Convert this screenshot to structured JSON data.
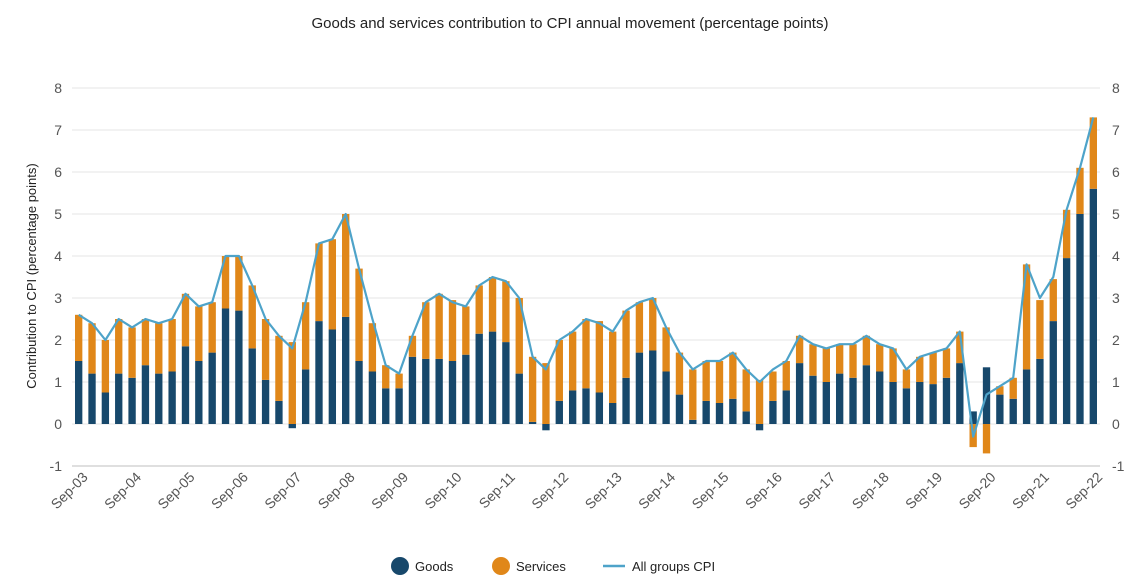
{
  "chart_data": {
    "type": "bar",
    "stacked": true,
    "title": "Goods and services contribution to CPI annual movement (percentage points)",
    "ylabel": "Contribution to CPI (percentage points)",
    "xlabel": "",
    "ylim": [
      -1,
      8
    ],
    "yticks": [
      "-1",
      "0",
      "1",
      "2",
      "3",
      "4",
      "5",
      "6",
      "7",
      "8"
    ],
    "grid": true,
    "legend_position": "bottom",
    "colors": {
      "goods": "#17486b",
      "services": "#e08719",
      "cpi": "#4ea3c9"
    },
    "x_tick_labels": [
      "Sep-03",
      "Sep-04",
      "Sep-05",
      "Sep-06",
      "Sep-07",
      "Sep-08",
      "Sep-09",
      "Sep-10",
      "Sep-11",
      "Sep-12",
      "Sep-13",
      "Sep-14",
      "Sep-15",
      "Sep-16",
      "Sep-17",
      "Sep-18",
      "Sep-19",
      "Sep-20",
      "Sep-21",
      "Sep-22"
    ],
    "tick_every": 4,
    "series": [
      {
        "name": "Goods",
        "kind": "bar",
        "values": [
          1.5,
          1.2,
          0.75,
          1.2,
          1.1,
          1.4,
          1.2,
          1.25,
          1.85,
          1.5,
          1.7,
          2.75,
          2.7,
          1.8,
          1.05,
          0.55,
          -0.1,
          1.3,
          2.45,
          2.25,
          2.55,
          1.5,
          1.25,
          0.85,
          0.85,
          1.6,
          1.55,
          1.55,
          1.5,
          1.65,
          2.15,
          2.2,
          1.95,
          1.2,
          0.05,
          -0.15,
          0.55,
          0.8,
          0.85,
          0.75,
          0.5,
          1.1,
          1.7,
          1.75,
          1.25,
          0.7,
          0.1,
          0.55,
          0.5,
          0.6,
          0.3,
          -0.15,
          0.55,
          0.8,
          1.45,
          1.15,
          1.0,
          1.2,
          1.1,
          1.4,
          1.25,
          1.0,
          0.85,
          1.0,
          0.95,
          1.1,
          1.45,
          0.3,
          1.35,
          0.7,
          0.6,
          1.3,
          1.55,
          2.45,
          3.95,
          5.0,
          5.6
        ]
      },
      {
        "name": "Services",
        "kind": "bar",
        "values": [
          1.1,
          1.2,
          1.25,
          1.3,
          1.2,
          1.1,
          1.2,
          1.25,
          1.25,
          1.3,
          1.2,
          1.25,
          1.3,
          1.5,
          1.45,
          1.55,
          1.95,
          1.6,
          1.85,
          2.15,
          2.45,
          2.2,
          1.15,
          0.55,
          0.35,
          0.5,
          1.35,
          1.55,
          1.45,
          1.15,
          1.15,
          1.3,
          1.45,
          1.8,
          1.55,
          1.45,
          1.45,
          1.4,
          1.65,
          1.7,
          1.7,
          1.6,
          1.2,
          1.25,
          1.05,
          1.0,
          1.2,
          0.95,
          1.0,
          1.1,
          1.0,
          1.05,
          0.7,
          0.7,
          0.65,
          0.75,
          0.8,
          0.7,
          0.8,
          0.7,
          0.65,
          0.8,
          0.45,
          0.6,
          0.75,
          0.7,
          0.75,
          -0.55,
          -0.7,
          0.2,
          0.5,
          2.5,
          1.4,
          1.0,
          1.15,
          1.1,
          1.7
        ]
      },
      {
        "name": "All groups CPI",
        "kind": "line",
        "values": [
          2.6,
          2.4,
          2.0,
          2.5,
          2.3,
          2.5,
          2.4,
          2.5,
          3.1,
          2.8,
          2.9,
          4.0,
          4.0,
          3.3,
          2.5,
          2.1,
          1.8,
          2.9,
          4.3,
          4.4,
          5.0,
          3.7,
          2.5,
          1.4,
          1.2,
          2.1,
          2.9,
          3.1,
          2.9,
          2.8,
          3.3,
          3.5,
          3.4,
          3.0,
          1.6,
          1.3,
          2.0,
          2.2,
          2.5,
          2.4,
          2.2,
          2.7,
          2.9,
          3.0,
          2.3,
          1.7,
          1.3,
          1.5,
          1.5,
          1.7,
          1.3,
          1.0,
          1.3,
          1.5,
          2.1,
          1.9,
          1.8,
          1.9,
          1.9,
          2.1,
          1.9,
          1.8,
          1.3,
          1.6,
          1.7,
          1.8,
          2.2,
          -0.3,
          0.7,
          0.9,
          1.1,
          3.8,
          3.0,
          3.5,
          5.1,
          6.1,
          7.3
        ]
      }
    ]
  }
}
